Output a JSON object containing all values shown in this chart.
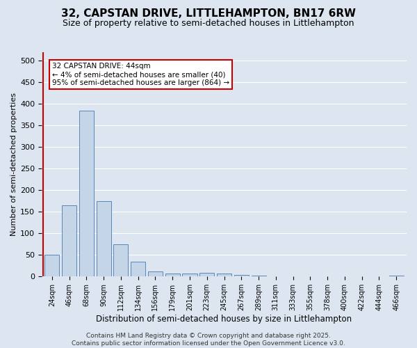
{
  "title": "32, CAPSTAN DRIVE, LITTLEHAMPTON, BN17 6RW",
  "subtitle": "Size of property relative to semi-detached houses in Littlehampton",
  "xlabel": "Distribution of semi-detached houses by size in Littlehampton",
  "ylabel": "Number of semi-detached properties",
  "categories": [
    "24sqm",
    "46sqm",
    "68sqm",
    "90sqm",
    "112sqm",
    "134sqm",
    "156sqm",
    "179sqm",
    "201sqm",
    "223sqm",
    "245sqm",
    "267sqm",
    "289sqm",
    "311sqm",
    "333sqm",
    "355sqm",
    "378sqm",
    "400sqm",
    "422sqm",
    "444sqm",
    "466sqm"
  ],
  "values": [
    50,
    165,
    385,
    175,
    75,
    35,
    12,
    7,
    7,
    8,
    7,
    3,
    2,
    1,
    1,
    1,
    1,
    1,
    1,
    1,
    2
  ],
  "bar_color": "#c5d5e8",
  "bar_edge_color": "#5a87b8",
  "subject_line_color": "#cc0000",
  "annotation_text": "32 CAPSTAN DRIVE: 44sqm\n← 4% of semi-detached houses are smaller (40)\n95% of semi-detached houses are larger (864) →",
  "annotation_box_color": "#cc0000",
  "ylim": [
    0,
    520
  ],
  "yticks": [
    0,
    50,
    100,
    150,
    200,
    250,
    300,
    350,
    400,
    450,
    500
  ],
  "background_color": "#dde6f0",
  "plot_bg_color": "#dde6f0",
  "fig_bg_color": "#dde6f0",
  "grid_color": "#ffffff",
  "footer_text": "Contains HM Land Registry data © Crown copyright and database right 2025.\nContains public sector information licensed under the Open Government Licence v3.0.",
  "title_fontsize": 11,
  "subtitle_fontsize": 9,
  "xlabel_fontsize": 8.5,
  "ylabel_fontsize": 8,
  "tick_fontsize": 7,
  "footer_fontsize": 6.5,
  "annot_fontsize": 7.5
}
